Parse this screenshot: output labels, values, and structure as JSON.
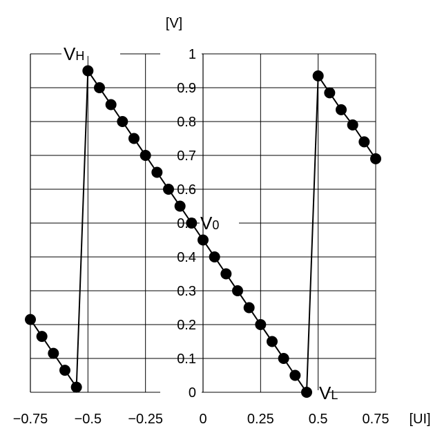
{
  "chart_data": {
    "type": "line",
    "title": "",
    "xlabel": "[UI]",
    "ylabel": "[V]",
    "xlim": [
      -0.75,
      0.75
    ],
    "ylim": [
      0,
      1
    ],
    "grid": true,
    "x_ticks": [
      -0.75,
      -0.5,
      -0.25,
      0,
      0.25,
      0.5,
      0.75
    ],
    "x_tick_labels": [
      "-0.75",
      "-0.5",
      "-0.25",
      "0",
      "0.25",
      "0.5",
      "0.75"
    ],
    "y_ticks": [
      0,
      0.1,
      0.2,
      0.3,
      0.4,
      0.5,
      0.6,
      0.7,
      0.8,
      0.9,
      1
    ],
    "y_tick_labels": [
      "0",
      "0.1",
      "0.2",
      "0.3",
      "0.4",
      "0.5",
      "0.6",
      "0.7",
      "0.8",
      "0.9",
      "1"
    ],
    "series": [
      {
        "x": [
          -0.75,
          -0.7,
          -0.65,
          -0.6,
          -0.55,
          -0.5,
          -0.45,
          -0.4,
          -0.35,
          -0.3,
          -0.25,
          -0.2,
          -0.15,
          -0.1,
          -0.05,
          0,
          0.05,
          0.1,
          0.15,
          0.2,
          0.25,
          0.3,
          0.35,
          0.4,
          0.45,
          0.5,
          0.55,
          0.6,
          0.65,
          0.7,
          0.75
        ],
        "y": [
          0.215,
          0.165,
          0.115,
          0.065,
          0.015,
          0.95,
          0.9,
          0.85,
          0.8,
          0.75,
          0.7,
          0.65,
          0.6,
          0.55,
          0.5,
          0.45,
          0.4,
          0.35,
          0.3,
          0.25,
          0.2,
          0.15,
          0.1,
          0.05,
          0.0,
          0.935,
          0.885,
          0.835,
          0.79,
          0.74,
          0.69
        ]
      }
    ],
    "annotations": [
      {
        "main": "V",
        "sub": "H",
        "x": -0.5,
        "y": 1
      },
      {
        "main": "V",
        "sub": "0",
        "x": 0,
        "y": 0.5
      },
      {
        "main": "V",
        "sub": "L",
        "x": 0.5,
        "y": 0
      }
    ]
  }
}
